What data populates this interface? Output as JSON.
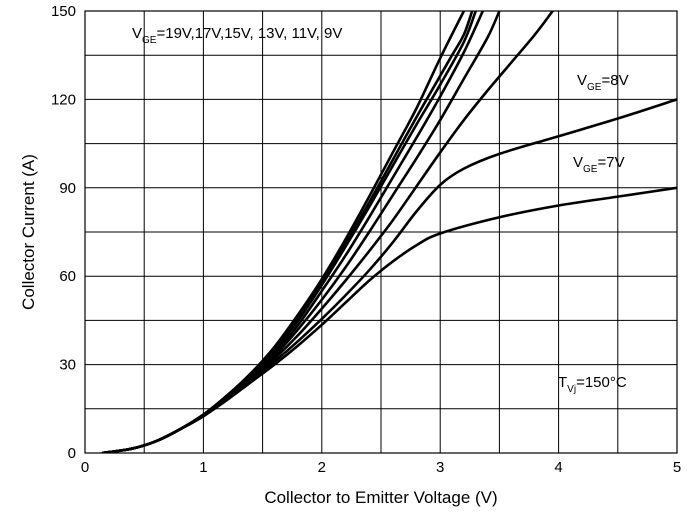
{
  "chart_data": {
    "type": "line",
    "xlabel": "Collector to Emitter Voltage (V)",
    "ylabel": "Collector Current (A)",
    "xlim": [
      0,
      5
    ],
    "ylim": [
      0,
      150
    ],
    "xticks": [
      0,
      1,
      2,
      3,
      4,
      5
    ],
    "yticks": [
      0,
      30,
      60,
      90,
      120,
      150
    ],
    "grid": "on",
    "annotations": [
      {
        "main": "V",
        "sub": "GE",
        "rest": "=19V,17V,15V, 13V, 11V, 9V"
      },
      {
        "main": "V",
        "sub": "GE",
        "rest": "=8V"
      },
      {
        "main": "V",
        "sub": "GE",
        "rest": "=7V"
      },
      {
        "main": "T",
        "sub": "Vj",
        "rest": "=150°C"
      }
    ],
    "series": [
      {
        "x": [
          0.15,
          0.4,
          0.6,
          0.8,
          1.0,
          1.2,
          1.4,
          1.6,
          1.8,
          2.0,
          2.2,
          2.4,
          2.6,
          2.8,
          3.0,
          3.2
        ],
        "y": [
          0,
          1.5,
          4,
          8,
          13,
          19.5,
          27,
          36,
          47,
          59,
          72.5,
          87,
          102,
          117,
          134,
          150
        ]
      },
      {
        "x": [
          0.15,
          0.4,
          0.6,
          0.8,
          1.0,
          1.2,
          1.4,
          1.6,
          1.8,
          2.0,
          2.2,
          2.4,
          2.6,
          2.8,
          3.0,
          3.1,
          3.2,
          3.27
        ],
        "y": [
          0,
          1.5,
          4,
          8,
          13,
          19.5,
          27,
          35.5,
          46,
          58,
          71,
          85,
          99.5,
          114,
          128,
          135,
          142,
          150
        ]
      },
      {
        "x": [
          0.15,
          0.4,
          0.6,
          0.8,
          1.0,
          1.2,
          1.4,
          1.6,
          1.8,
          2.0,
          2.2,
          2.4,
          2.6,
          2.8,
          3.0,
          3.2,
          3.3
        ],
        "y": [
          0,
          1.5,
          4,
          8,
          13,
          19.5,
          26.5,
          35,
          45,
          57,
          70,
          83.5,
          97.5,
          111.5,
          125,
          139.5,
          150
        ]
      },
      {
        "x": [
          0.15,
          0.4,
          0.6,
          0.8,
          1.0,
          1.2,
          1.4,
          1.6,
          1.8,
          2.0,
          2.2,
          2.4,
          2.6,
          2.8,
          3.0,
          3.2,
          3.36
        ],
        "y": [
          0,
          1.5,
          4,
          8,
          13,
          19,
          26,
          34,
          43.5,
          55,
          67,
          80,
          93.5,
          107,
          121,
          136,
          150
        ]
      },
      {
        "x": [
          0.15,
          0.4,
          0.6,
          0.8,
          1.0,
          1.2,
          1.4,
          1.6,
          1.8,
          2.0,
          2.2,
          2.4,
          2.6,
          2.8,
          3.0,
          3.2,
          3.4,
          3.5
        ],
        "y": [
          0,
          1.5,
          4,
          8,
          13,
          19,
          25.5,
          33,
          42,
          52,
          63,
          75,
          87.5,
          100,
          113,
          127,
          141,
          150
        ]
      },
      {
        "x": [
          0.15,
          0.4,
          0.6,
          0.8,
          1.0,
          1.2,
          1.4,
          1.6,
          1.8,
          2.0,
          2.2,
          2.4,
          2.6,
          2.8,
          3.0,
          3.2,
          3.4,
          3.6,
          3.8,
          3.95
        ],
        "y": [
          0,
          1.5,
          4,
          8,
          12.5,
          18.5,
          25,
          32,
          40,
          49,
          58.5,
          68.5,
          79,
          90.5,
          102,
          113,
          123,
          132.5,
          142,
          150
        ]
      },
      {
        "x": [
          0.15,
          0.4,
          0.6,
          0.8,
          1.0,
          1.2,
          1.4,
          1.6,
          1.8,
          2.0,
          2.2,
          2.4,
          2.6,
          2.8,
          3.0,
          3.2,
          3.5,
          4.0,
          4.5,
          5.0
        ],
        "y": [
          0,
          1.5,
          4,
          8,
          12.5,
          18.5,
          24.5,
          31,
          38,
          45.5,
          53.5,
          62,
          71.5,
          82,
          91,
          96.5,
          101.5,
          107.5,
          113.5,
          120
        ]
      },
      {
        "x": [
          0.15,
          0.4,
          0.6,
          0.8,
          1.0,
          1.2,
          1.4,
          1.6,
          1.8,
          2.0,
          2.2,
          2.4,
          2.6,
          2.8,
          3.0,
          3.5,
          4.0,
          4.5,
          5.0
        ],
        "y": [
          0,
          1.5,
          4,
          8,
          12.5,
          18,
          24,
          30,
          36.5,
          43.5,
          51,
          58.5,
          65,
          70.5,
          74.5,
          80,
          84,
          87,
          90
        ]
      }
    ]
  }
}
